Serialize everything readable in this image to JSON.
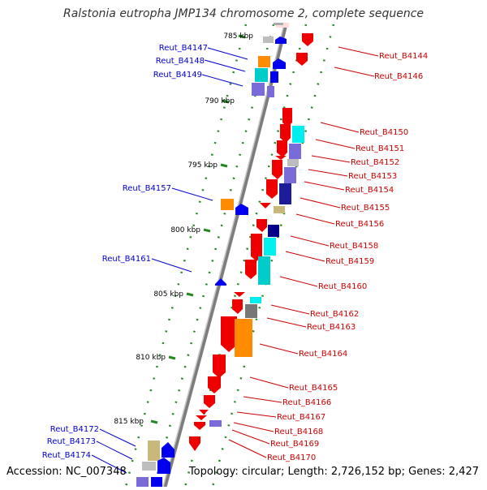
{
  "title": "Ralstonia eutropha JMP134 chromosome 2, complete sequence",
  "accession": "Accession: NC_007348",
  "topology": "Topology: circular; Length: 2,726,152 bp; Genes: 2,427",
  "scale_labels": [
    "785 kbp",
    "790 kbp",
    "795 kbp",
    "800 kbp",
    "805 kbp",
    "810 kbp",
    "815 kbp"
  ],
  "colors": {
    "label_left": "#0000cc",
    "label_right": "#cc0000",
    "backbone": "#888888",
    "dots": "#228822"
  },
  "left_genes": [
    "Reut_B4147",
    "Reut_B4148",
    "Reut_B4149",
    "Reut_B4157",
    "Reut_B4161",
    "Reut_B4172",
    "Reut_B4173",
    "Reut_B4174"
  ],
  "right_genes": [
    "Reut_B4144",
    "Reut_B4146",
    "Reut_B4150",
    "Reut_B4151",
    "Reut_B4152",
    "Reut_B4153",
    "Reut_B4154",
    "Reut_B4155",
    "Reut_B4156",
    "Reut_B4158",
    "Reut_B4159",
    "Reut_B4160",
    "Reut_B4162",
    "Reut_B4163",
    "Reut_B4164",
    "Reut_B4165",
    "Reut_B4166",
    "Reut_B4167",
    "Reut_B4168",
    "Reut_B4169",
    "Reut_B4170"
  ]
}
